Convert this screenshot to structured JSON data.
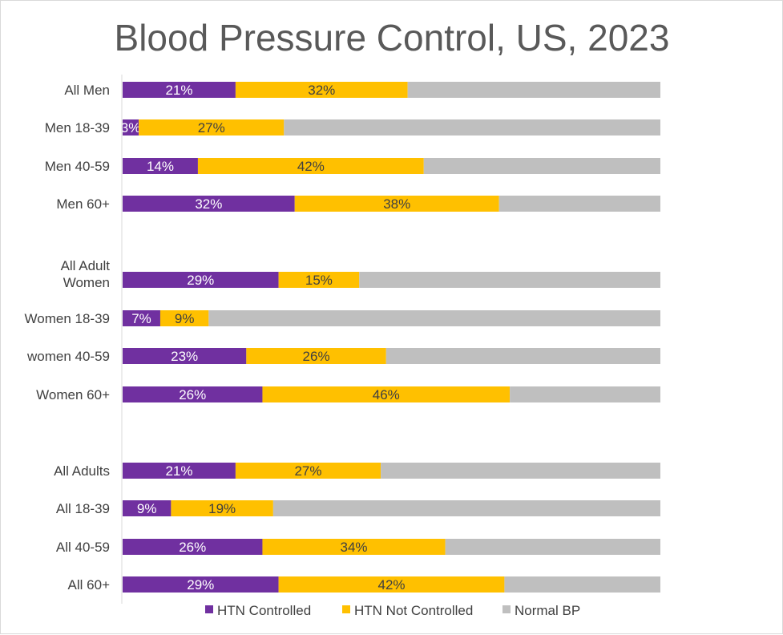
{
  "chart_data": {
    "type": "bar",
    "orientation": "horizontal",
    "stacked": "100%",
    "title": "Blood Pressure Control, US, 2023",
    "categories": [
      {
        "label": [
          "All Men"
        ]
      },
      {
        "label": [
          "Men 18-39"
        ]
      },
      {
        "label": [
          "Men 40-59"
        ]
      },
      {
        "label": [
          "Men 60+"
        ]
      },
      {
        "label": [
          "All Adult",
          "Women"
        ]
      },
      {
        "label": [
          "Women 18-39"
        ]
      },
      {
        "label": [
          "women 40-59"
        ]
      },
      {
        "label": [
          "Women 60+"
        ]
      },
      {
        "label": [
          "All Adults"
        ]
      },
      {
        "label": [
          "All 18-39"
        ]
      },
      {
        "label": [
          "All 40-59"
        ]
      },
      {
        "label": [
          "All 60+"
        ]
      }
    ],
    "series": [
      {
        "name": "HTN Controlled",
        "color": "#7030a0",
        "label_color": "#ffffff",
        "values": [
          21,
          3,
          14,
          32,
          29,
          7,
          23,
          26,
          21,
          9,
          26,
          29
        ],
        "labels": [
          "21%",
          "3%",
          "14%",
          "32%",
          "29%",
          "7%",
          "23%",
          "26%",
          "21%",
          "9%",
          "26%",
          "29%"
        ]
      },
      {
        "name": "HTN Not Controlled",
        "color": "#ffc000",
        "label_color": "#404040",
        "values": [
          32,
          27,
          42,
          38,
          15,
          9,
          26,
          46,
          27,
          19,
          34,
          42
        ],
        "labels": [
          "32%",
          "27%",
          "42%",
          "38%",
          "15%",
          "9%",
          "26%",
          "46%",
          "27%",
          "19%",
          "34%",
          "42%"
        ]
      },
      {
        "name": "Normal BP",
        "color": "#bfbfbf",
        "label_color": "#404040",
        "values": [
          47,
          70,
          44,
          30,
          56,
          84,
          51,
          28,
          52,
          72,
          40,
          29
        ],
        "labels": []
      }
    ],
    "xlim": [
      0,
      100
    ],
    "grid": false,
    "legend_position": "bottom"
  }
}
